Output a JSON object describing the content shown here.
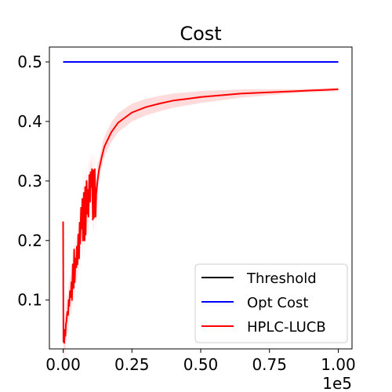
{
  "chart_data": {
    "type": "line",
    "title": "Cost",
    "xlabel": "",
    "ylabel": "",
    "x_offset_text": "1e5",
    "xlim": [
      -0.05,
      1.05
    ],
    "ylim": [
      0.018,
      0.525
    ],
    "x_ticks": [
      0.0,
      0.25,
      0.5,
      0.75,
      1.0
    ],
    "x_tick_labels": [
      "0.00",
      "0.25",
      "0.50",
      "0.75",
      "1.00"
    ],
    "y_ticks": [
      0.1,
      0.2,
      0.3,
      0.4,
      0.5
    ],
    "y_tick_labels": [
      "0.1",
      "0.2",
      "0.3",
      "0.4",
      "0.5"
    ],
    "grid": false,
    "legend_position": "lower-right",
    "series": [
      {
        "name": "Threshold",
        "color": "#000000",
        "x": [
          0.0,
          1.0
        ],
        "y": [
          0.5,
          0.5
        ]
      },
      {
        "name": "Opt Cost",
        "color": "#0000ff",
        "x": [
          0.0,
          1.0
        ],
        "y": [
          0.5,
          0.5
        ]
      },
      {
        "name": "HPLC-LUCB",
        "color": "#ff0000",
        "band_color": "#ffcccc",
        "x": [
          0.0,
          0.001,
          0.002,
          0.004,
          0.006,
          0.008,
          0.01,
          0.012,
          0.015,
          0.018,
          0.02,
          0.022,
          0.025,
          0.028,
          0.03,
          0.032,
          0.035,
          0.038,
          0.04,
          0.042,
          0.045,
          0.048,
          0.05,
          0.052,
          0.055,
          0.058,
          0.06,
          0.062,
          0.065,
          0.068,
          0.07,
          0.072,
          0.075,
          0.078,
          0.08,
          0.082,
          0.085,
          0.088,
          0.09,
          0.092,
          0.095,
          0.098,
          0.1,
          0.102,
          0.105,
          0.108,
          0.11,
          0.112,
          0.115,
          0.118,
          0.12,
          0.125,
          0.13,
          0.14,
          0.15,
          0.175,
          0.2,
          0.25,
          0.3,
          0.35,
          0.4,
          0.45,
          0.5,
          0.55,
          0.6,
          0.65,
          0.7,
          0.75,
          0.8,
          0.85,
          0.9,
          0.95,
          1.0
        ],
        "y": [
          0.232,
          0.03,
          0.035,
          0.028,
          0.05,
          0.04,
          0.06,
          0.065,
          0.08,
          0.075,
          0.1,
          0.09,
          0.115,
          0.105,
          0.13,
          0.1,
          0.16,
          0.12,
          0.185,
          0.13,
          0.17,
          0.155,
          0.19,
          0.16,
          0.21,
          0.17,
          0.23,
          0.195,
          0.255,
          0.22,
          0.27,
          0.2,
          0.28,
          0.2,
          0.29,
          0.21,
          0.3,
          0.245,
          0.285,
          0.24,
          0.31,
          0.265,
          0.315,
          0.29,
          0.32,
          0.235,
          0.318,
          0.238,
          0.32,
          0.24,
          0.278,
          0.3,
          0.318,
          0.34,
          0.358,
          0.382,
          0.398,
          0.415,
          0.424,
          0.43,
          0.435,
          0.438,
          0.441,
          0.443,
          0.445,
          0.447,
          0.448,
          0.449,
          0.45,
          0.451,
          0.452,
          0.453,
          0.454
        ]
      }
    ]
  }
}
